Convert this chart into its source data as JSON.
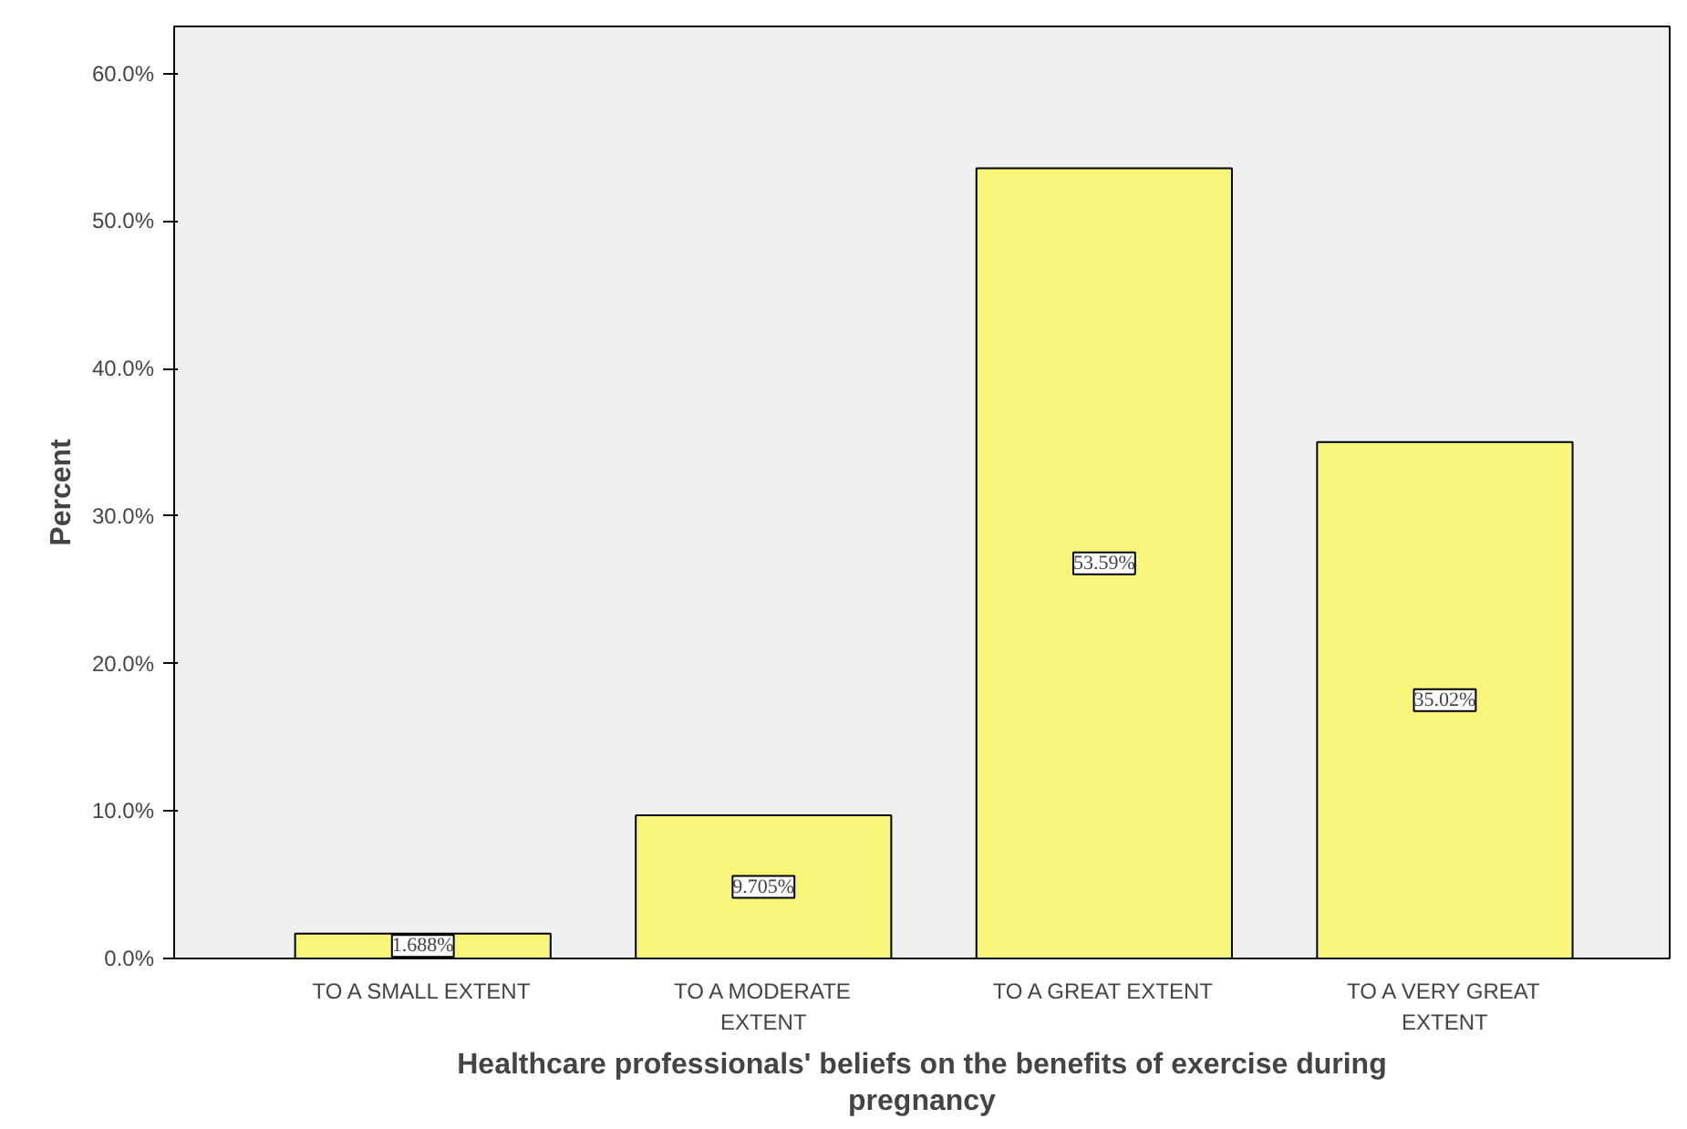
{
  "chart_data": {
    "type": "bar",
    "xlabel": "Healthcare professionals' beliefs on the benefits of exercise during pregnancy",
    "ylabel": "Percent",
    "categories": [
      "TO A SMALL EXTENT",
      "TO A MODERATE EXTENT",
      "TO A GREAT EXTENT",
      "TO A VERY GREAT EXTENT"
    ],
    "values": [
      1.688,
      9.705,
      53.59,
      35.02
    ],
    "value_labels": [
      "1.688%",
      "9.705%",
      "53.59%",
      "35.02%"
    ],
    "color": "#f7f57a",
    "ylim": [
      0,
      63.2
    ],
    "yticks": [
      {
        "value": 0,
        "label": "0.0%"
      },
      {
        "value": 10,
        "label": "10.0%"
      },
      {
        "value": 20,
        "label": "20.0%"
      },
      {
        "value": 30,
        "label": "30.0%"
      },
      {
        "value": 40,
        "label": "40.0%"
      },
      {
        "value": 50,
        "label": "50.0%"
      },
      {
        "value": 60,
        "label": "60.0%"
      }
    ],
    "grid": false
  }
}
